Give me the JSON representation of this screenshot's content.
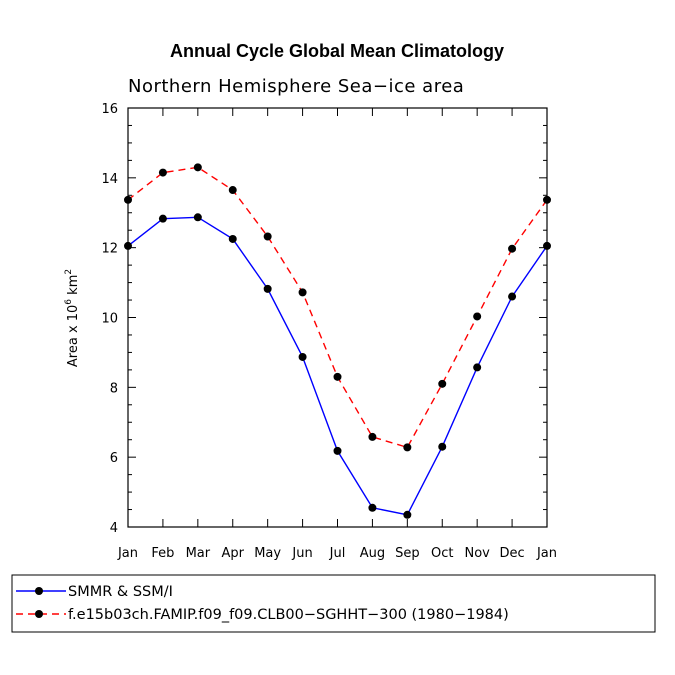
{
  "chart_data": {
    "type": "line",
    "title": "Annual Cycle Global Mean Climatology",
    "subtitle": "Northern Hemisphere Sea−ice area",
    "ylabel": "Area x 10^6 km^2",
    "ylabel_parts": {
      "base": "Area x 10",
      "exp1": "6",
      "mid": " km",
      "exp2": "2"
    },
    "xlabel": "",
    "categories": [
      "Jan",
      "Feb",
      "Mar",
      "Apr",
      "May",
      "Jun",
      "Jul",
      "Aug",
      "Sep",
      "Oct",
      "Nov",
      "Dec",
      "Jan"
    ],
    "ylim": [
      4,
      16
    ],
    "yticks": [
      4,
      6,
      8,
      10,
      12,
      14,
      16
    ],
    "grid": false,
    "legend_position": "bottom",
    "series": [
      {
        "name": "SMMR & SSM/I",
        "color": "#0000ff",
        "dash": "solid",
        "values": [
          12.05,
          12.83,
          12.87,
          12.25,
          10.82,
          8.87,
          6.18,
          4.55,
          4.35,
          6.3,
          8.57,
          10.6,
          12.05
        ]
      },
      {
        "name": "f.e15b03ch.FAMIP.f09_f09.CLB00−SGHHT−300 (1980−1984)",
        "color": "#ff0000",
        "dash": "dashed",
        "values": [
          13.37,
          14.15,
          14.3,
          13.65,
          12.32,
          10.72,
          8.3,
          6.58,
          6.28,
          8.1,
          10.03,
          11.97,
          13.37
        ]
      }
    ]
  }
}
